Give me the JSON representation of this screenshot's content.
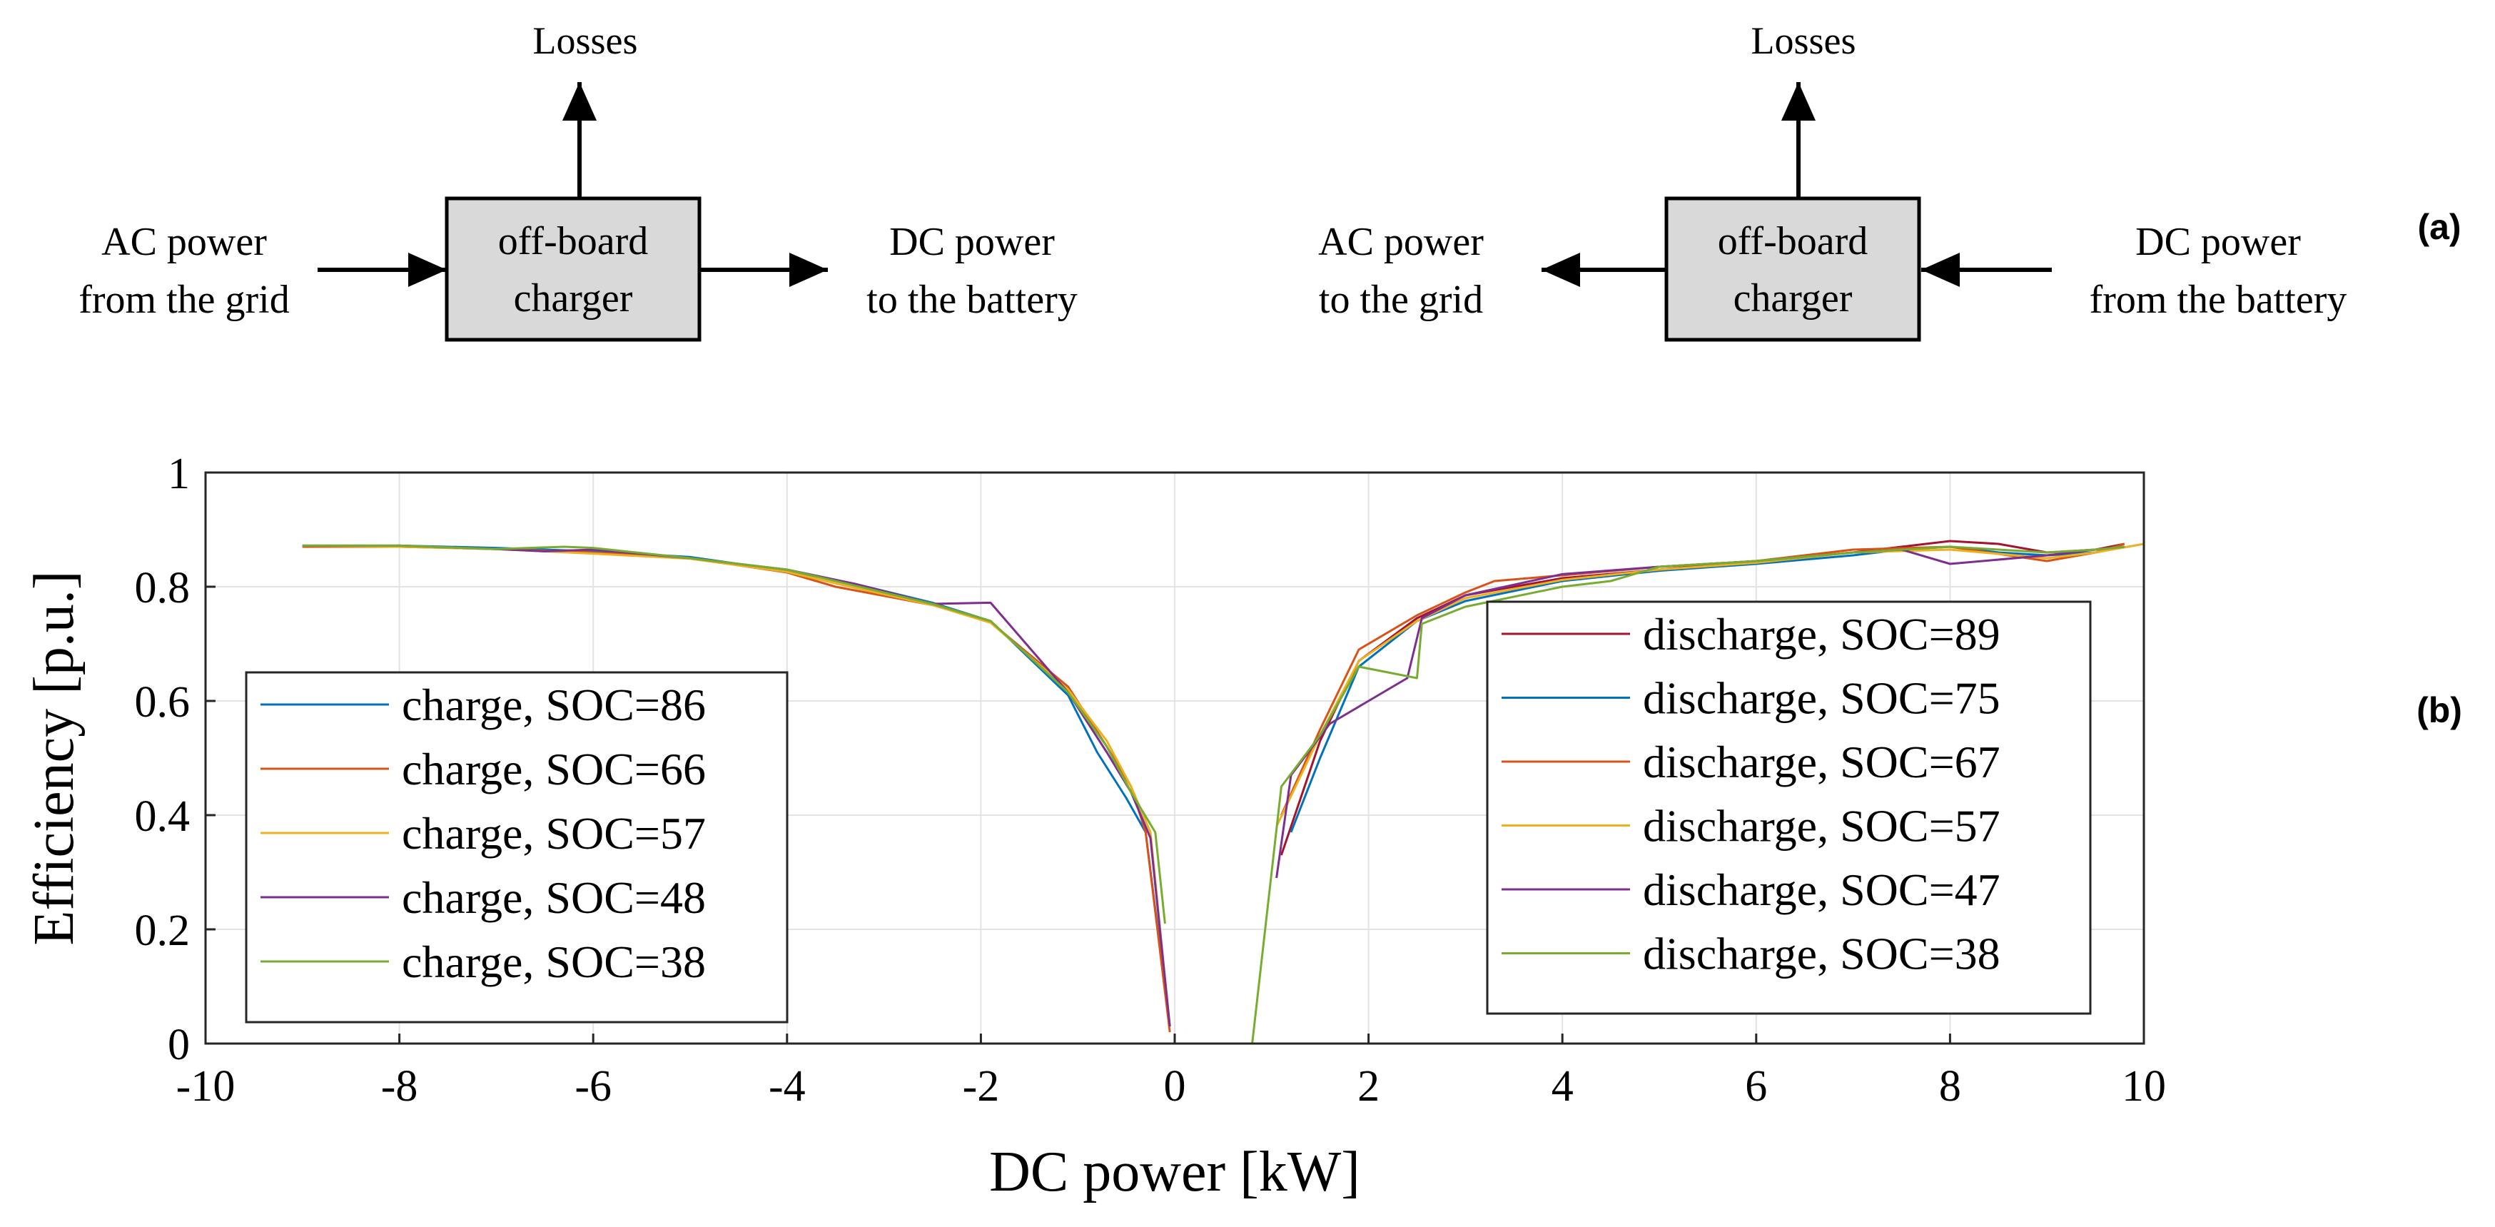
{
  "diagram": {
    "charge": {
      "losses": "Losses",
      "box": [
        "off-board",
        "charger"
      ],
      "input": [
        "AC power",
        "from the grid"
      ],
      "output": [
        "DC power",
        "to the battery"
      ]
    },
    "discharge": {
      "losses": "Losses",
      "box": [
        "off-board",
        "charger"
      ],
      "output": [
        "AC power",
        "to the grid"
      ],
      "input": [
        "DC power",
        "from the battery"
      ]
    },
    "panel_label": "(a)",
    "box_fill": "#d9d9d9"
  },
  "chart_panel_label": "(b)",
  "chart_data": {
    "type": "line",
    "title": "",
    "xlabel": "DC power [kW]",
    "ylabel": "Efficiency [p.u.]",
    "xlim": [
      -10,
      10
    ],
    "ylim": [
      0,
      1
    ],
    "xticks": [
      "-10",
      "-8",
      "-6",
      "-4",
      "-2",
      "0",
      "2",
      "4",
      "6",
      "8",
      "10"
    ],
    "yticks": [
      "0",
      "0.2",
      "0.4",
      "0.6",
      "0.8",
      "1"
    ],
    "grid": true,
    "legends": [
      "left",
      "right"
    ],
    "series": [
      {
        "name": "charge, SOC=86",
        "legend": "left",
        "color": "#0072bd",
        "x": [
          -9,
          -8,
          -7,
          -6,
          -5,
          -4,
          -3.3,
          -2.5,
          -1.9,
          -1.1,
          -0.8,
          -0.5,
          -0.3,
          -0.05
        ],
        "y": [
          0.87,
          0.872,
          0.868,
          0.862,
          0.852,
          0.828,
          0.805,
          0.772,
          0.74,
          0.61,
          0.51,
          0.43,
          0.37,
          0.03
        ]
      },
      {
        "name": "charge, SOC=66",
        "legend": "left",
        "color": "#d95319",
        "x": [
          -9,
          -8,
          -7,
          -6,
          -5,
          -4,
          -3.5,
          -2.5,
          -1.9,
          -1.1,
          -0.7,
          -0.45,
          -0.3,
          -0.05
        ],
        "y": [
          0.87,
          0.87,
          0.866,
          0.86,
          0.85,
          0.825,
          0.8,
          0.768,
          0.738,
          0.625,
          0.52,
          0.45,
          0.37,
          0.02
        ]
      },
      {
        "name": "charge, SOC=57",
        "legend": "left",
        "color": "#edb120",
        "x": [
          -9,
          -8,
          -7,
          -6,
          -5,
          -4,
          -3.3,
          -2.5,
          -1.9,
          -1.1,
          -0.7,
          -0.45,
          -0.25,
          -0.05
        ],
        "y": [
          0.872,
          0.87,
          0.866,
          0.858,
          0.849,
          0.826,
          0.798,
          0.768,
          0.737,
          0.62,
          0.53,
          0.45,
          0.37,
          0.03
        ]
      },
      {
        "name": "charge, SOC=48",
        "legend": "left",
        "color": "#7e2f8e",
        "x": [
          -9,
          -8,
          -7,
          -6.5,
          -6,
          -5,
          -4,
          -3.3,
          -2.5,
          -1.9,
          -1.1,
          -0.7,
          -0.45,
          -0.25,
          -0.05
        ],
        "y": [
          0.872,
          0.872,
          0.866,
          0.862,
          0.865,
          0.85,
          0.83,
          0.805,
          0.77,
          0.772,
          0.615,
          0.51,
          0.44,
          0.36,
          0.03
        ]
      },
      {
        "name": "charge, SOC=38",
        "legend": "left",
        "color": "#77ac30",
        "x": [
          -9,
          -8,
          -7,
          -6.3,
          -6,
          -5,
          -4,
          -3.3,
          -2.5,
          -1.9,
          -1.1,
          -0.7,
          -0.45,
          -0.2,
          -0.1
        ],
        "y": [
          0.872,
          0.872,
          0.866,
          0.87,
          0.868,
          0.85,
          0.83,
          0.802,
          0.77,
          0.74,
          0.615,
          0.52,
          0.44,
          0.37,
          0.21
        ]
      },
      {
        "name": "discharge, SOC=89",
        "legend": "right",
        "color": "#a2142f",
        "x": [
          1.1,
          1.5,
          1.9,
          2.5,
          3,
          4,
          5,
          6,
          7,
          7.5,
          8,
          8.5,
          9,
          9.5,
          9.8
        ],
        "y": [
          0.33,
          0.53,
          0.67,
          0.745,
          0.785,
          0.815,
          0.83,
          0.845,
          0.86,
          0.87,
          0.88,
          0.875,
          0.86,
          0.865,
          0.875
        ]
      },
      {
        "name": "discharge, SOC=75",
        "legend": "right",
        "color": "#0072bd",
        "x": [
          1.2,
          1.5,
          1.9,
          2.5,
          3,
          4,
          5,
          6,
          7,
          7.5,
          8,
          8.5,
          9,
          9.5,
          9.8
        ],
        "y": [
          0.37,
          0.5,
          0.66,
          0.74,
          0.775,
          0.81,
          0.828,
          0.84,
          0.855,
          0.865,
          0.87,
          0.86,
          0.855,
          0.86,
          0.87
        ]
      },
      {
        "name": "discharge, SOC=67",
        "legend": "right",
        "color": "#d95319",
        "x": [
          1.1,
          1.5,
          1.9,
          2.5,
          3,
          3.3,
          4,
          5,
          6,
          7,
          8,
          9,
          9.5,
          9.8
        ],
        "y": [
          0.4,
          0.55,
          0.69,
          0.75,
          0.79,
          0.81,
          0.82,
          0.835,
          0.845,
          0.865,
          0.87,
          0.845,
          0.86,
          0.875
        ]
      },
      {
        "name": "discharge, SOC=57",
        "legend": "right",
        "color": "#edb120",
        "x": [
          1.05,
          1.5,
          1.9,
          2.5,
          3,
          4,
          5,
          6,
          7,
          8,
          9,
          9.5,
          10
        ],
        "y": [
          0.38,
          0.54,
          0.67,
          0.74,
          0.78,
          0.812,
          0.83,
          0.842,
          0.86,
          0.865,
          0.85,
          0.86,
          0.875
        ]
      },
      {
        "name": "discharge, SOC=47",
        "legend": "right",
        "color": "#7e2f8e",
        "x": [
          1.05,
          1.2,
          1.6,
          2,
          2.4,
          2.55,
          3,
          4,
          5,
          6,
          7,
          7.5,
          8,
          9,
          9.5,
          9.8
        ],
        "y": [
          0.29,
          0.47,
          0.56,
          0.6,
          0.64,
          0.745,
          0.785,
          0.822,
          0.835,
          0.845,
          0.86,
          0.865,
          0.84,
          0.855,
          0.865,
          0.87
        ]
      },
      {
        "name": "discharge, SOC=38",
        "legend": "right",
        "color": "#77ac30",
        "x": [
          0.8,
          1.0,
          1.1,
          1.5,
          1.9,
          2.5,
          2.55,
          3,
          4,
          4.5,
          5,
          6,
          7,
          8,
          9,
          9.5,
          9.8
        ],
        "y": [
          0.0,
          0.3,
          0.45,
          0.54,
          0.66,
          0.64,
          0.735,
          0.765,
          0.8,
          0.81,
          0.835,
          0.845,
          0.86,
          0.87,
          0.86,
          0.865,
          0.87
        ]
      }
    ]
  }
}
